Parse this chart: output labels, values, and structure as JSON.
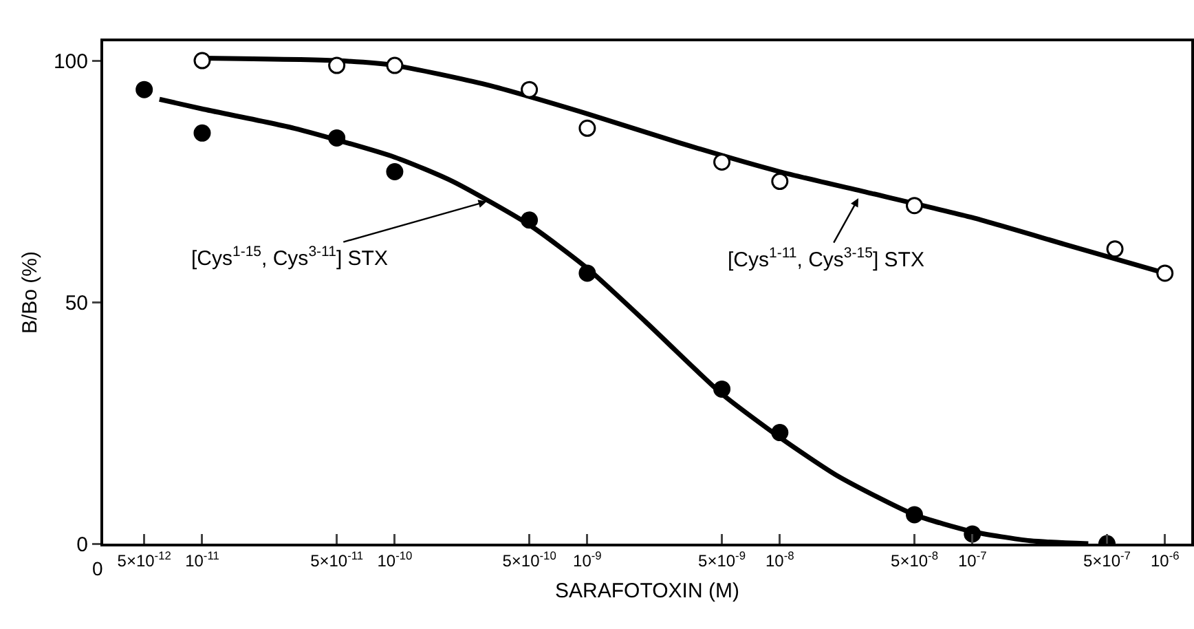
{
  "chart_data": {
    "type": "scatter",
    "xlabel": "SARAFOTOXIN (M)",
    "ylabel": "B/Bo (%)",
    "log": "x",
    "xlim": [
      3.06e-12,
      1.37e-06
    ],
    "ylim": [
      0,
      104
    ],
    "yticks": [
      0,
      50,
      100
    ],
    "xticks": [
      {
        "value": 5e-12,
        "label": "5×10$^{-12}$"
      },
      {
        "value": 1e-11,
        "label": "10$^{-11}$"
      },
      {
        "value": 5e-11,
        "label": "5×10$^{-11}$"
      },
      {
        "value": 1e-10,
        "label": "10$^{-10}$"
      },
      {
        "value": 5e-10,
        "label": "5×10$^{-10}$"
      },
      {
        "value": 1e-09,
        "label": "10$^{-9}$"
      },
      {
        "value": 5e-09,
        "label": "5×10$^{-9}$"
      },
      {
        "value": 1e-08,
        "label": "10$^{-8}$"
      },
      {
        "value": 5e-08,
        "label": "5×10$^{-8}$"
      },
      {
        "value": 1e-07,
        "label": "10$^{-7}$"
      },
      {
        "value": 5e-07,
        "label": "5×10$^{-7}$"
      },
      {
        "value": 1e-06,
        "label": "10$^{-6}$"
      }
    ],
    "grid": false,
    "marker": "circle",
    "series": [
      {
        "type": "line",
        "color": "#000000",
        "marker": "none",
        "x": [
          6e-12,
          1e-11,
          3e-11,
          1e-10,
          2e-10,
          5e-10,
          1e-09,
          2e-09,
          5e-09,
          1e-08,
          2e-08,
          5e-08,
          1e-07,
          2e-07,
          4e-07
        ],
        "values": [
          92,
          90,
          86,
          80,
          75,
          66,
          57,
          46,
          31,
          22,
          14,
          6,
          2.5,
          0.6,
          0
        ]
      },
      {
        "type": "line",
        "color": "#000000",
        "marker": "none",
        "x": [
          1e-11,
          5e-11,
          1e-10,
          3e-10,
          1e-09,
          3e-09,
          1e-08,
          3e-08,
          1e-07,
          3e-07,
          1e-06
        ],
        "values": [
          100.5,
          100,
          99,
          95,
          89,
          83,
          77,
          72.5,
          67.5,
          62,
          56
        ]
      },
      {
        "color": "#000000",
        "x": [
          5e-12,
          1e-11,
          5e-11,
          1e-10,
          5e-10,
          1e-09,
          5e-09,
          1e-08,
          5e-08,
          1e-07,
          5e-07
        ],
        "values": [
          94,
          85,
          84,
          77,
          67,
          56,
          32,
          23,
          6,
          2,
          0
        ]
      },
      {
        "color": "#ffffff",
        "x": [
          1e-11,
          5e-11,
          1e-10,
          5e-10,
          1e-09,
          5e-09,
          1e-08,
          5e-08,
          5.5e-07,
          1e-06
        ],
        "values": [
          100,
          99,
          99,
          94,
          86,
          79,
          75,
          70,
          61,
          56
        ]
      }
    ],
    "annotations": [
      {
        "text": "[Cys$^{1-15}$, Cys$^{3-11}$] STX",
        "x": 3.1e-10,
        "y": 71
      },
      {
        "text": "[Cys$^{1-11}$, Cys$^{3-15}$] STX",
        "x": 2.6e-08,
        "y": 72
      },
      "0"
    ]
  }
}
